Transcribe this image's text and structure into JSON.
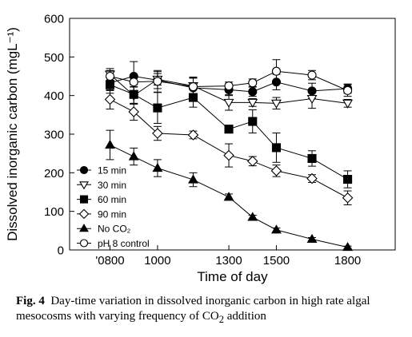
{
  "chart_data": {
    "type": "line",
    "xlabel": "Time of day",
    "ylabel": "Dissolved inorganic carbon (mgL⁻¹)",
    "xlim": [
      630,
      2000
    ],
    "ylim": [
      0,
      600
    ],
    "xticks": [
      {
        "value": 800,
        "label": "'0800"
      },
      {
        "value": 1000,
        "label": "1000"
      },
      {
        "value": 1300,
        "label": "1300"
      },
      {
        "value": 1500,
        "label": "1500"
      },
      {
        "value": 1800,
        "label": "1800"
      }
    ],
    "yticks": [
      0,
      100,
      200,
      300,
      400,
      500,
      600
    ],
    "grid": false,
    "legend_position": "bottom-left",
    "series": [
      {
        "name": "15 min",
        "marker": "circle-filled",
        "x": [
          800,
          900,
          1000,
          1150,
          1300,
          1400,
          1500,
          1650,
          1800
        ],
        "y": [
          433,
          450,
          440,
          420,
          415,
          410,
          435,
          412,
          418
        ],
        "err": [
          20,
          38,
          22,
          25,
          15,
          12,
          20,
          20,
          12
        ]
      },
      {
        "name": "30 min",
        "marker": "triangle-down-open",
        "x": [
          800,
          900,
          1000,
          1150,
          1300,
          1400,
          1500,
          1650,
          1800
        ],
        "y": [
          455,
          400,
          442,
          425,
          382,
          382,
          380,
          392,
          380
        ],
        "err": [
          15,
          22,
          15,
          22,
          20,
          10,
          15,
          25,
          10
        ]
      },
      {
        "name": "60 min",
        "marker": "square-filled",
        "x": [
          800,
          900,
          1000,
          1150,
          1300,
          1400,
          1500,
          1650,
          1800
        ],
        "y": [
          428,
          403,
          368,
          395,
          313,
          333,
          265,
          237,
          183
        ],
        "err": [
          22,
          25,
          40,
          25,
          10,
          30,
          38,
          20,
          22
        ]
      },
      {
        "name": "90 min",
        "marker": "diamond-open",
        "x": [
          800,
          900,
          1000,
          1150,
          1300,
          1400,
          1500,
          1650,
          1800
        ],
        "y": [
          390,
          358,
          302,
          298,
          245,
          230,
          205,
          185,
          135
        ],
        "err": [
          25,
          22,
          18,
          10,
          30,
          12,
          15,
          10,
          18
        ]
      },
      {
        "name": "No CO₂",
        "marker": "triangle-up-filled",
        "x": [
          800,
          900,
          1000,
          1150,
          1300,
          1400,
          1500,
          1650,
          1800
        ],
        "y": [
          272,
          242,
          212,
          182,
          137,
          85,
          52,
          28,
          7
        ],
        "err": [
          38,
          22,
          22,
          18,
          8,
          5,
          5,
          4,
          3
        ]
      },
      {
        "name": "pH 8 control",
        "marker": "circle-open",
        "x": [
          800,
          900,
          1000,
          1150,
          1300,
          1400,
          1500,
          1650,
          1800
        ],
        "y": [
          450,
          435,
          437,
          423,
          425,
          433,
          463,
          453,
          413
        ],
        "err": [
          15,
          12,
          28,
          25,
          10,
          10,
          30,
          12,
          15
        ]
      }
    ]
  },
  "caption": {
    "label": "Fig. 4",
    "text_before": "Day-time variation in dissolved inorganic carbon in high rate algal mesocosms with varying frequency of CO",
    "subscript": "2",
    "text_after": " addition"
  }
}
